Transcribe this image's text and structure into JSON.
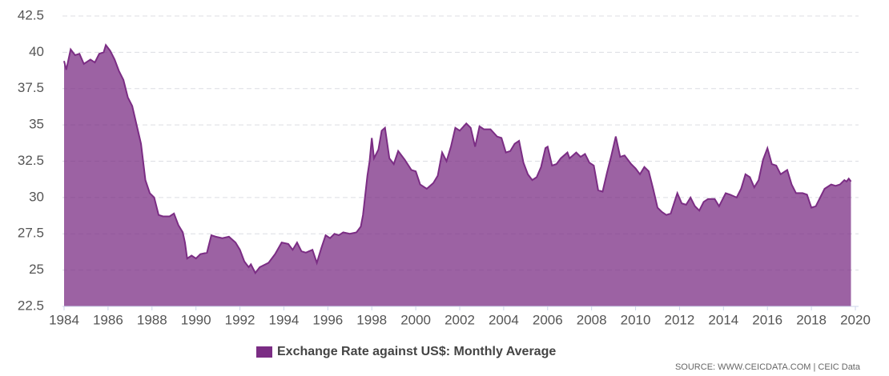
{
  "chart_data": {
    "type": "area",
    "x": [
      1984.0,
      1984.1,
      1984.3,
      1984.5,
      1984.7,
      1984.9,
      1985.2,
      1985.4,
      1985.6,
      1985.8,
      1985.9,
      1986.1,
      1986.3,
      1986.5,
      1986.7,
      1986.9,
      1987.1,
      1987.3,
      1987.5,
      1987.7,
      1987.9,
      1988.1,
      1988.3,
      1988.5,
      1988.8,
      1989.0,
      1989.2,
      1989.4,
      1989.5,
      1989.6,
      1989.8,
      1990.0,
      1990.2,
      1990.5,
      1990.7,
      1990.9,
      1991.2,
      1991.5,
      1991.8,
      1992.0,
      1992.2,
      1992.4,
      1992.5,
      1992.7,
      1992.9,
      1993.3,
      1993.6,
      1993.9,
      1994.2,
      1994.4,
      1994.6,
      1994.8,
      1995.0,
      1995.3,
      1995.5,
      1995.7,
      1995.9,
      1996.1,
      1996.3,
      1996.5,
      1996.7,
      1997.0,
      1997.3,
      1997.5,
      1997.6,
      1997.8,
      1997.9,
      1998.0,
      1998.1,
      1998.3,
      1998.45,
      1998.6,
      1998.8,
      1999.0,
      1999.2,
      1999.5,
      1999.8,
      2000.0,
      2000.2,
      2000.5,
      2000.8,
      2001.0,
      2001.2,
      2001.4,
      2001.6,
      2001.8,
      2002.0,
      2002.3,
      2002.5,
      2002.7,
      2002.9,
      2003.1,
      2003.4,
      2003.7,
      2003.9,
      2004.1,
      2004.3,
      2004.5,
      2004.7,
      2004.9,
      2005.1,
      2005.3,
      2005.5,
      2005.7,
      2005.9,
      2006.0,
      2006.2,
      2006.4,
      2006.6,
      2006.9,
      2007.0,
      2007.3,
      2007.5,
      2007.7,
      2007.9,
      2008.1,
      2008.3,
      2008.5,
      2008.7,
      2008.9,
      2009.1,
      2009.3,
      2009.5,
      2009.8,
      2010.0,
      2010.2,
      2010.4,
      2010.6,
      2010.8,
      2011.0,
      2011.2,
      2011.4,
      2011.6,
      2011.9,
      2012.1,
      2012.3,
      2012.5,
      2012.7,
      2012.9,
      2013.1,
      2013.3,
      2013.6,
      2013.8,
      2014.1,
      2014.3,
      2014.6,
      2014.8,
      2015.0,
      2015.2,
      2015.4,
      2015.6,
      2015.8,
      2016.0,
      2016.2,
      2016.4,
      2016.6,
      2016.9,
      2017.1,
      2017.3,
      2017.6,
      2017.8,
      2018.0,
      2018.2,
      2018.4,
      2018.6,
      2018.9,
      2019.1,
      2019.3,
      2019.5,
      2019.6,
      2019.7,
      2019.8
    ],
    "series": [
      {
        "name": "Exchange Rate against US$: Monthly Average",
        "color": "#7b2d84",
        "values": [
          39.4,
          38.8,
          40.2,
          39.8,
          39.9,
          39.2,
          39.5,
          39.3,
          39.9,
          40.0,
          40.5,
          40.1,
          39.5,
          38.7,
          38.1,
          36.9,
          36.3,
          35.0,
          33.7,
          31.2,
          30.3,
          30.0,
          28.8,
          28.7,
          28.7,
          28.9,
          28.1,
          27.6,
          26.9,
          25.8,
          26.0,
          25.8,
          26.1,
          26.2,
          27.4,
          27.3,
          27.2,
          27.3,
          26.9,
          26.4,
          25.6,
          25.2,
          25.4,
          24.8,
          25.2,
          25.5,
          26.1,
          26.9,
          26.8,
          26.4,
          26.9,
          26.3,
          26.2,
          26.4,
          25.5,
          26.5,
          27.4,
          27.2,
          27.5,
          27.4,
          27.6,
          27.5,
          27.6,
          28.0,
          28.8,
          31.5,
          32.5,
          34.1,
          32.7,
          33.3,
          34.6,
          34.8,
          32.7,
          32.3,
          33.2,
          32.6,
          31.9,
          31.8,
          30.9,
          30.6,
          31.0,
          31.5,
          33.1,
          32.5,
          33.5,
          34.8,
          34.6,
          35.1,
          34.8,
          33.5,
          34.9,
          34.7,
          34.7,
          34.2,
          34.1,
          33.1,
          33.2,
          33.7,
          33.9,
          32.4,
          31.6,
          31.2,
          31.4,
          32.1,
          33.4,
          33.5,
          32.2,
          32.3,
          32.7,
          33.1,
          32.7,
          33.1,
          32.8,
          33.0,
          32.4,
          32.2,
          30.5,
          30.4,
          31.7,
          32.9,
          34.2,
          32.8,
          32.9,
          32.3,
          32.0,
          31.6,
          32.1,
          31.8,
          30.6,
          29.3,
          29.0,
          28.8,
          28.9,
          30.3,
          29.6,
          29.5,
          30.0,
          29.4,
          29.1,
          29.7,
          29.9,
          29.9,
          29.4,
          30.3,
          30.2,
          30.0,
          30.6,
          31.6,
          31.4,
          30.7,
          31.2,
          32.6,
          33.4,
          32.3,
          32.2,
          31.6,
          31.9,
          30.9,
          30.3,
          30.3,
          30.2,
          29.3,
          29.4,
          30.0,
          30.6,
          30.9,
          30.8,
          30.9,
          31.2,
          31.1,
          31.3,
          31.1
        ]
      }
    ],
    "xlim": [
      1984,
      2020
    ],
    "xticks": [
      1984,
      1986,
      1988,
      1990,
      1992,
      1994,
      1996,
      1998,
      2000,
      2002,
      2004,
      2006,
      2008,
      2010,
      2012,
      2014,
      2016,
      2018,
      2020
    ],
    "ylim": [
      22.5,
      42.5
    ],
    "yticks": [
      22.5,
      25,
      27.5,
      30,
      32.5,
      35,
      37.5,
      40,
      42.5
    ],
    "grid": true,
    "legend": "bottom",
    "source": "SOURCE: WWW.CEICDATA.COM | CEIC Data"
  }
}
